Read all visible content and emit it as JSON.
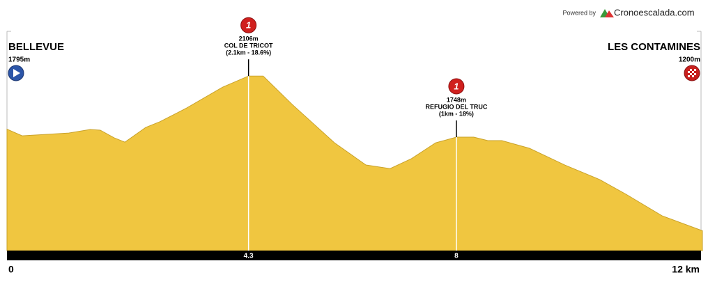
{
  "chart_data": {
    "type": "area",
    "powered_by": "Powered by",
    "brand": "Cronoescalada.com",
    "start": {
      "name": "BELLEVUE",
      "elevation": "1795m"
    },
    "end": {
      "name": "LES CONTAMINES",
      "elevation": "1200m"
    },
    "x": [
      0,
      0.27,
      1.1,
      1.48,
      1.66,
      1.91,
      2.1,
      2.47,
      2.72,
      3.2,
      3.84,
      4.3,
      4.56,
      5.08,
      5.83,
      6.39,
      6.82,
      7.2,
      7.63,
      8,
      8.31,
      8.56,
      8.81,
      9.3,
      9.93,
      10.55,
      11.04,
      11.66,
      12.38
    ],
    "values": [
      1795,
      1756,
      1772,
      1793,
      1789,
      1744,
      1719,
      1805,
      1838,
      1919,
      2041,
      2106,
      2106,
      1939,
      1715,
      1585,
      1564,
      1622,
      1715,
      1748,
      1748,
      1728,
      1728,
      1683,
      1585,
      1500,
      1410,
      1288,
      1200
    ],
    "color": "#f0c640",
    "xlim": [
      0,
      12.38
    ],
    "ylim": [
      1084,
      2388
    ],
    "xticks": [
      0,
      4.3,
      8,
      {
        "value": 12,
        "label": "12 km"
      }
    ],
    "climbs": [
      {
        "x": 4.3,
        "icon": "1",
        "elevation": "2106m",
        "name": "COL DE TRICOT",
        "detail": "(2.1km - 18.6%)"
      },
      {
        "x": 8,
        "icon": "1",
        "elevation": "1748m",
        "name": "REFUGIO DEL TRUC",
        "detail": "(1km - 18%)"
      }
    ]
  }
}
